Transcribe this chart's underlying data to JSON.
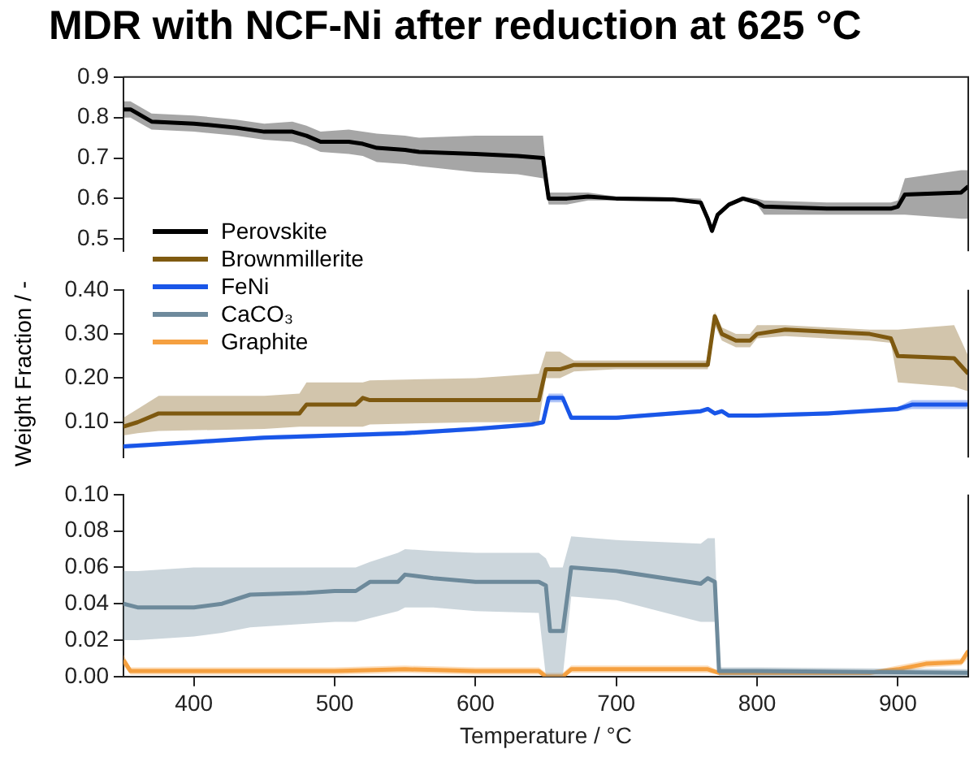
{
  "chart_data": [
    {
      "type": "line",
      "title": "MDR with NCF-Ni after reduction at 625 °C",
      "legend": "left",
      "tick_labels": "y",
      "xlim": [
        350,
        950
      ],
      "xticks": [
        400,
        500,
        600,
        700,
        800,
        900
      ],
      "ylim": [
        0.47,
        0.9
      ],
      "yticks": [
        0.5,
        0.6,
        0.7,
        0.8,
        0.9
      ],
      "series": [
        {
          "name": "Perovskite",
          "color": "#000000",
          "x": [
            350,
            355,
            365,
            370,
            400,
            430,
            450,
            470,
            480,
            490,
            510,
            520,
            530,
            550,
            560,
            600,
            630,
            648,
            652,
            665,
            680,
            700,
            740,
            760,
            765,
            768,
            772,
            780,
            790,
            800,
            805,
            850,
            895,
            900,
            905,
            945,
            950
          ],
          "values": [
            0.82,
            0.82,
            0.8,
            0.79,
            0.785,
            0.775,
            0.765,
            0.765,
            0.755,
            0.74,
            0.74,
            0.735,
            0.725,
            0.72,
            0.715,
            0.71,
            0.705,
            0.7,
            0.6,
            0.6,
            0.605,
            0.6,
            0.598,
            0.59,
            0.55,
            0.52,
            0.56,
            0.585,
            0.6,
            0.59,
            0.58,
            0.575,
            0.575,
            0.58,
            0.61,
            0.615,
            0.63
          ],
          "lower": [
            0.8,
            0.8,
            0.78,
            0.77,
            0.765,
            0.755,
            0.745,
            0.74,
            0.73,
            0.715,
            0.71,
            0.705,
            0.69,
            0.685,
            0.68,
            0.665,
            0.66,
            0.65,
            0.585,
            0.585,
            0.595,
            0.595,
            0.593,
            0.585,
            0.545,
            0.515,
            0.555,
            0.58,
            0.595,
            0.585,
            0.56,
            0.56,
            0.56,
            0.56,
            0.56,
            0.55,
            0.55
          ],
          "upper": [
            0.84,
            0.84,
            0.82,
            0.81,
            0.805,
            0.795,
            0.785,
            0.79,
            0.78,
            0.765,
            0.77,
            0.765,
            0.76,
            0.755,
            0.75,
            0.755,
            0.755,
            0.755,
            0.615,
            0.615,
            0.615,
            0.605,
            0.603,
            0.6,
            0.56,
            0.525,
            0.565,
            0.59,
            0.605,
            0.6,
            0.595,
            0.59,
            0.59,
            0.595,
            0.65,
            0.67,
            0.67
          ]
        }
      ]
    },
    {
      "type": "line",
      "ylabel": "Weight Fraction / -",
      "legend": "left",
      "tick_labels": "y",
      "xlim": [
        350,
        950
      ],
      "xticks": [
        400,
        500,
        600,
        700,
        800,
        900
      ],
      "ylim": [
        0.02,
        0.4
      ],
      "yticks": [
        {
          "value": 0.1,
          "label": "0.10"
        },
        {
          "value": 0.2,
          "label": "0.20"
        },
        {
          "value": 0.3,
          "label": "0.30"
        },
        {
          "value": 0.4,
          "label": "0.40"
        }
      ],
      "series": [
        {
          "name": "Brownmillerite",
          "color": "#7f5a10",
          "x": [
            350,
            360,
            375,
            450,
            475,
            480,
            500,
            515,
            520,
            525,
            600,
            645,
            650,
            660,
            670,
            700,
            765,
            770,
            775,
            785,
            795,
            800,
            820,
            880,
            895,
            900,
            940,
            950
          ],
          "values": [
            0.09,
            0.1,
            0.12,
            0.12,
            0.12,
            0.14,
            0.14,
            0.14,
            0.155,
            0.15,
            0.15,
            0.15,
            0.22,
            0.22,
            0.23,
            0.23,
            0.23,
            0.34,
            0.3,
            0.285,
            0.285,
            0.3,
            0.31,
            0.3,
            0.29,
            0.25,
            0.245,
            0.21
          ],
          "lower": [
            0.07,
            0.075,
            0.08,
            0.085,
            0.09,
            0.09,
            0.09,
            0.09,
            0.09,
            0.095,
            0.1,
            0.1,
            0.2,
            0.2,
            0.215,
            0.22,
            0.22,
            0.32,
            0.285,
            0.27,
            0.27,
            0.29,
            0.295,
            0.285,
            0.28,
            0.19,
            0.18,
            0.17
          ],
          "upper": [
            0.11,
            0.13,
            0.16,
            0.16,
            0.165,
            0.19,
            0.19,
            0.19,
            0.19,
            0.195,
            0.2,
            0.21,
            0.26,
            0.26,
            0.24,
            0.24,
            0.24,
            0.35,
            0.315,
            0.3,
            0.3,
            0.32,
            0.32,
            0.31,
            0.31,
            0.31,
            0.32,
            0.25
          ]
        },
        {
          "name": "FeNi",
          "color": "#1a56e8",
          "x": [
            350,
            400,
            450,
            500,
            550,
            600,
            640,
            648,
            652,
            662,
            668,
            700,
            720,
            760,
            765,
            770,
            775,
            780,
            800,
            850,
            900,
            910,
            950
          ],
          "values": [
            0.045,
            0.055,
            0.065,
            0.07,
            0.075,
            0.085,
            0.095,
            0.1,
            0.155,
            0.155,
            0.11,
            0.11,
            0.115,
            0.125,
            0.13,
            0.12,
            0.125,
            0.115,
            0.115,
            0.12,
            0.13,
            0.14,
            0.14
          ],
          "lower": [
            0.04,
            0.05,
            0.06,
            0.065,
            0.07,
            0.08,
            0.09,
            0.095,
            0.145,
            0.145,
            0.105,
            0.105,
            0.11,
            0.12,
            0.125,
            0.115,
            0.12,
            0.11,
            0.11,
            0.115,
            0.125,
            0.13,
            0.13
          ],
          "upper": [
            0.05,
            0.06,
            0.07,
            0.075,
            0.08,
            0.09,
            0.1,
            0.105,
            0.165,
            0.165,
            0.115,
            0.115,
            0.12,
            0.13,
            0.135,
            0.125,
            0.13,
            0.12,
            0.12,
            0.125,
            0.135,
            0.15,
            0.15
          ]
        }
      ]
    },
    {
      "type": "line",
      "xlabel": "Temperature / °C",
      "legend": "left",
      "xlim": [
        350,
        950
      ],
      "xticks": [
        400,
        500,
        600,
        700,
        800,
        900
      ],
      "ylim": [
        0,
        0.1
      ],
      "yticks": [
        {
          "value": 0,
          "label": "0.00"
        },
        {
          "value": 0.02,
          "label": "0.02"
        },
        {
          "value": 0.04,
          "label": "0.04"
        },
        {
          "value": 0.06,
          "label": "0.06"
        },
        {
          "value": 0.08,
          "label": "0.08"
        },
        {
          "value": 0.1,
          "label": "0.10"
        }
      ],
      "series": [
        {
          "name": "CaCO₃",
          "color": "#6e8a9c",
          "x": [
            350,
            360,
            400,
            420,
            440,
            480,
            500,
            515,
            525,
            545,
            550,
            570,
            600,
            645,
            650,
            653,
            662,
            668,
            700,
            760,
            765,
            770,
            773,
            800,
            950
          ],
          "values": [
            0.04,
            0.038,
            0.038,
            0.04,
            0.045,
            0.046,
            0.047,
            0.047,
            0.052,
            0.052,
            0.056,
            0.054,
            0.052,
            0.052,
            0.05,
            0.025,
            0.025,
            0.06,
            0.058,
            0.051,
            0.054,
            0.052,
            0.003,
            0.003,
            0.002
          ],
          "lower": [
            0.02,
            0.02,
            0.022,
            0.024,
            0.027,
            0.029,
            0.03,
            0.03,
            0.032,
            0.036,
            0.038,
            0.038,
            0.036,
            0.035,
            0,
            0,
            0,
            0.044,
            0.042,
            0.03,
            0.03,
            0.03,
            0,
            0,
            0
          ],
          "upper": [
            0.058,
            0.058,
            0.06,
            0.06,
            0.06,
            0.06,
            0.06,
            0.06,
            0.063,
            0.068,
            0.07,
            0.069,
            0.068,
            0.068,
            0.065,
            0.06,
            0.06,
            0.077,
            0.075,
            0.073,
            0.076,
            0.076,
            0.005,
            0.005,
            0.004
          ]
        },
        {
          "name": "Graphite",
          "color": "#f5a040",
          "x": [
            350,
            355,
            500,
            550,
            600,
            645,
            650,
            662,
            668,
            765,
            773,
            880,
            900,
            920,
            945,
            950
          ],
          "values": [
            0.009,
            0.003,
            0.003,
            0.004,
            0.003,
            0.003,
            0,
            0,
            0.004,
            0.004,
            0.002,
            0.002,
            0.004,
            0.007,
            0.008,
            0.014
          ],
          "lower": [
            0.006,
            0.001,
            0.001,
            0.002,
            0.001,
            0.001,
            0,
            0,
            0.002,
            0.002,
            0.001,
            0.001,
            0.002,
            0.005,
            0.006,
            0.01
          ],
          "upper": [
            0.012,
            0.005,
            0.005,
            0.006,
            0.005,
            0.005,
            0.002,
            0.002,
            0.006,
            0.006,
            0.003,
            0.003,
            0.006,
            0.009,
            0.01,
            0.016
          ]
        }
      ]
    }
  ]
}
